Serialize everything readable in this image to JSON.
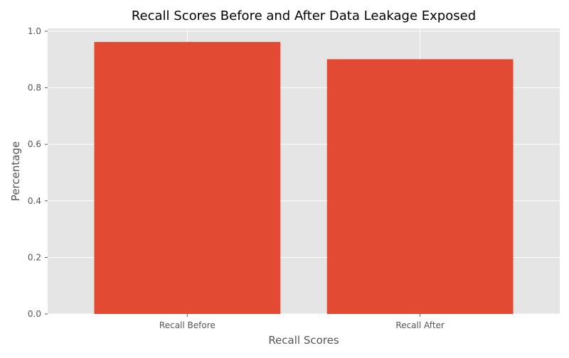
{
  "chart_data": {
    "type": "bar",
    "title": "Recall Scores Before and After Data Leakage Exposed",
    "xlabel": "Recall Scores",
    "ylabel": "Percentage",
    "categories": [
      "Recall Before",
      "Recall After"
    ],
    "values": [
      0.962,
      0.901
    ],
    "ylim": [
      0,
      1.01
    ],
    "yticks": [
      0.0,
      0.2,
      0.4,
      0.6,
      0.8,
      1.0
    ],
    "ytick_labels": [
      "0.0",
      "0.2",
      "0.4",
      "0.6",
      "0.8",
      "1.0"
    ],
    "grid": true,
    "legend": "none",
    "colors": {
      "bar": "#E24A33",
      "plot_background": "#E5E5E5",
      "grid": "#FFFFFF",
      "text": "#555555",
      "title": "#000000"
    }
  }
}
